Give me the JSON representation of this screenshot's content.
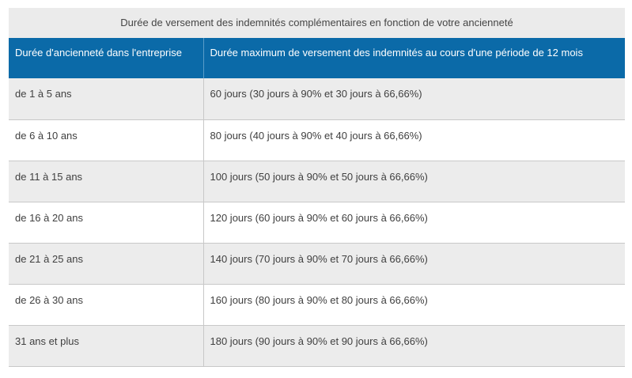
{
  "table": {
    "caption": "Durée de versement des indemnités complémentaires en fonction de votre ancienneté",
    "headers": [
      "Durée d'ancienneté dans l'entreprise",
      "Durée maximum de versement des indemnités au cours d'une période de 12 mois"
    ],
    "rows": [
      [
        "de 1 à 5 ans",
        "60 jours (30 jours à 90% et 30 jours à 66,66%)"
      ],
      [
        "de 6 à 10 ans",
        "80 jours (40 jours à 90% et 40 jours à 66,66%)"
      ],
      [
        "de 11 à 15 ans",
        "100 jours (50 jours à 90% et 50 jours à 66,66%)"
      ],
      [
        "de 16 à 20 ans",
        "120 jours (60 jours à 90% et 60 jours à 66,66%)"
      ],
      [
        "de 21 à 25 ans",
        "140 jours (70 jours à 90% et 70 jours à 66,66%)"
      ],
      [
        "de 26 à 30 ans",
        "160 jours (80 jours à 90% et 80 jours à 66,66%)"
      ],
      [
        "31 ans et plus",
        "180 jours (90 jours à 90% et 90 jours à 66,66%)"
      ]
    ]
  },
  "colors": {
    "header_bg": "#0b6aa8",
    "header_text": "#ffffff",
    "stripe_bg": "#ececec",
    "caption_bg": "#ebebeb"
  }
}
